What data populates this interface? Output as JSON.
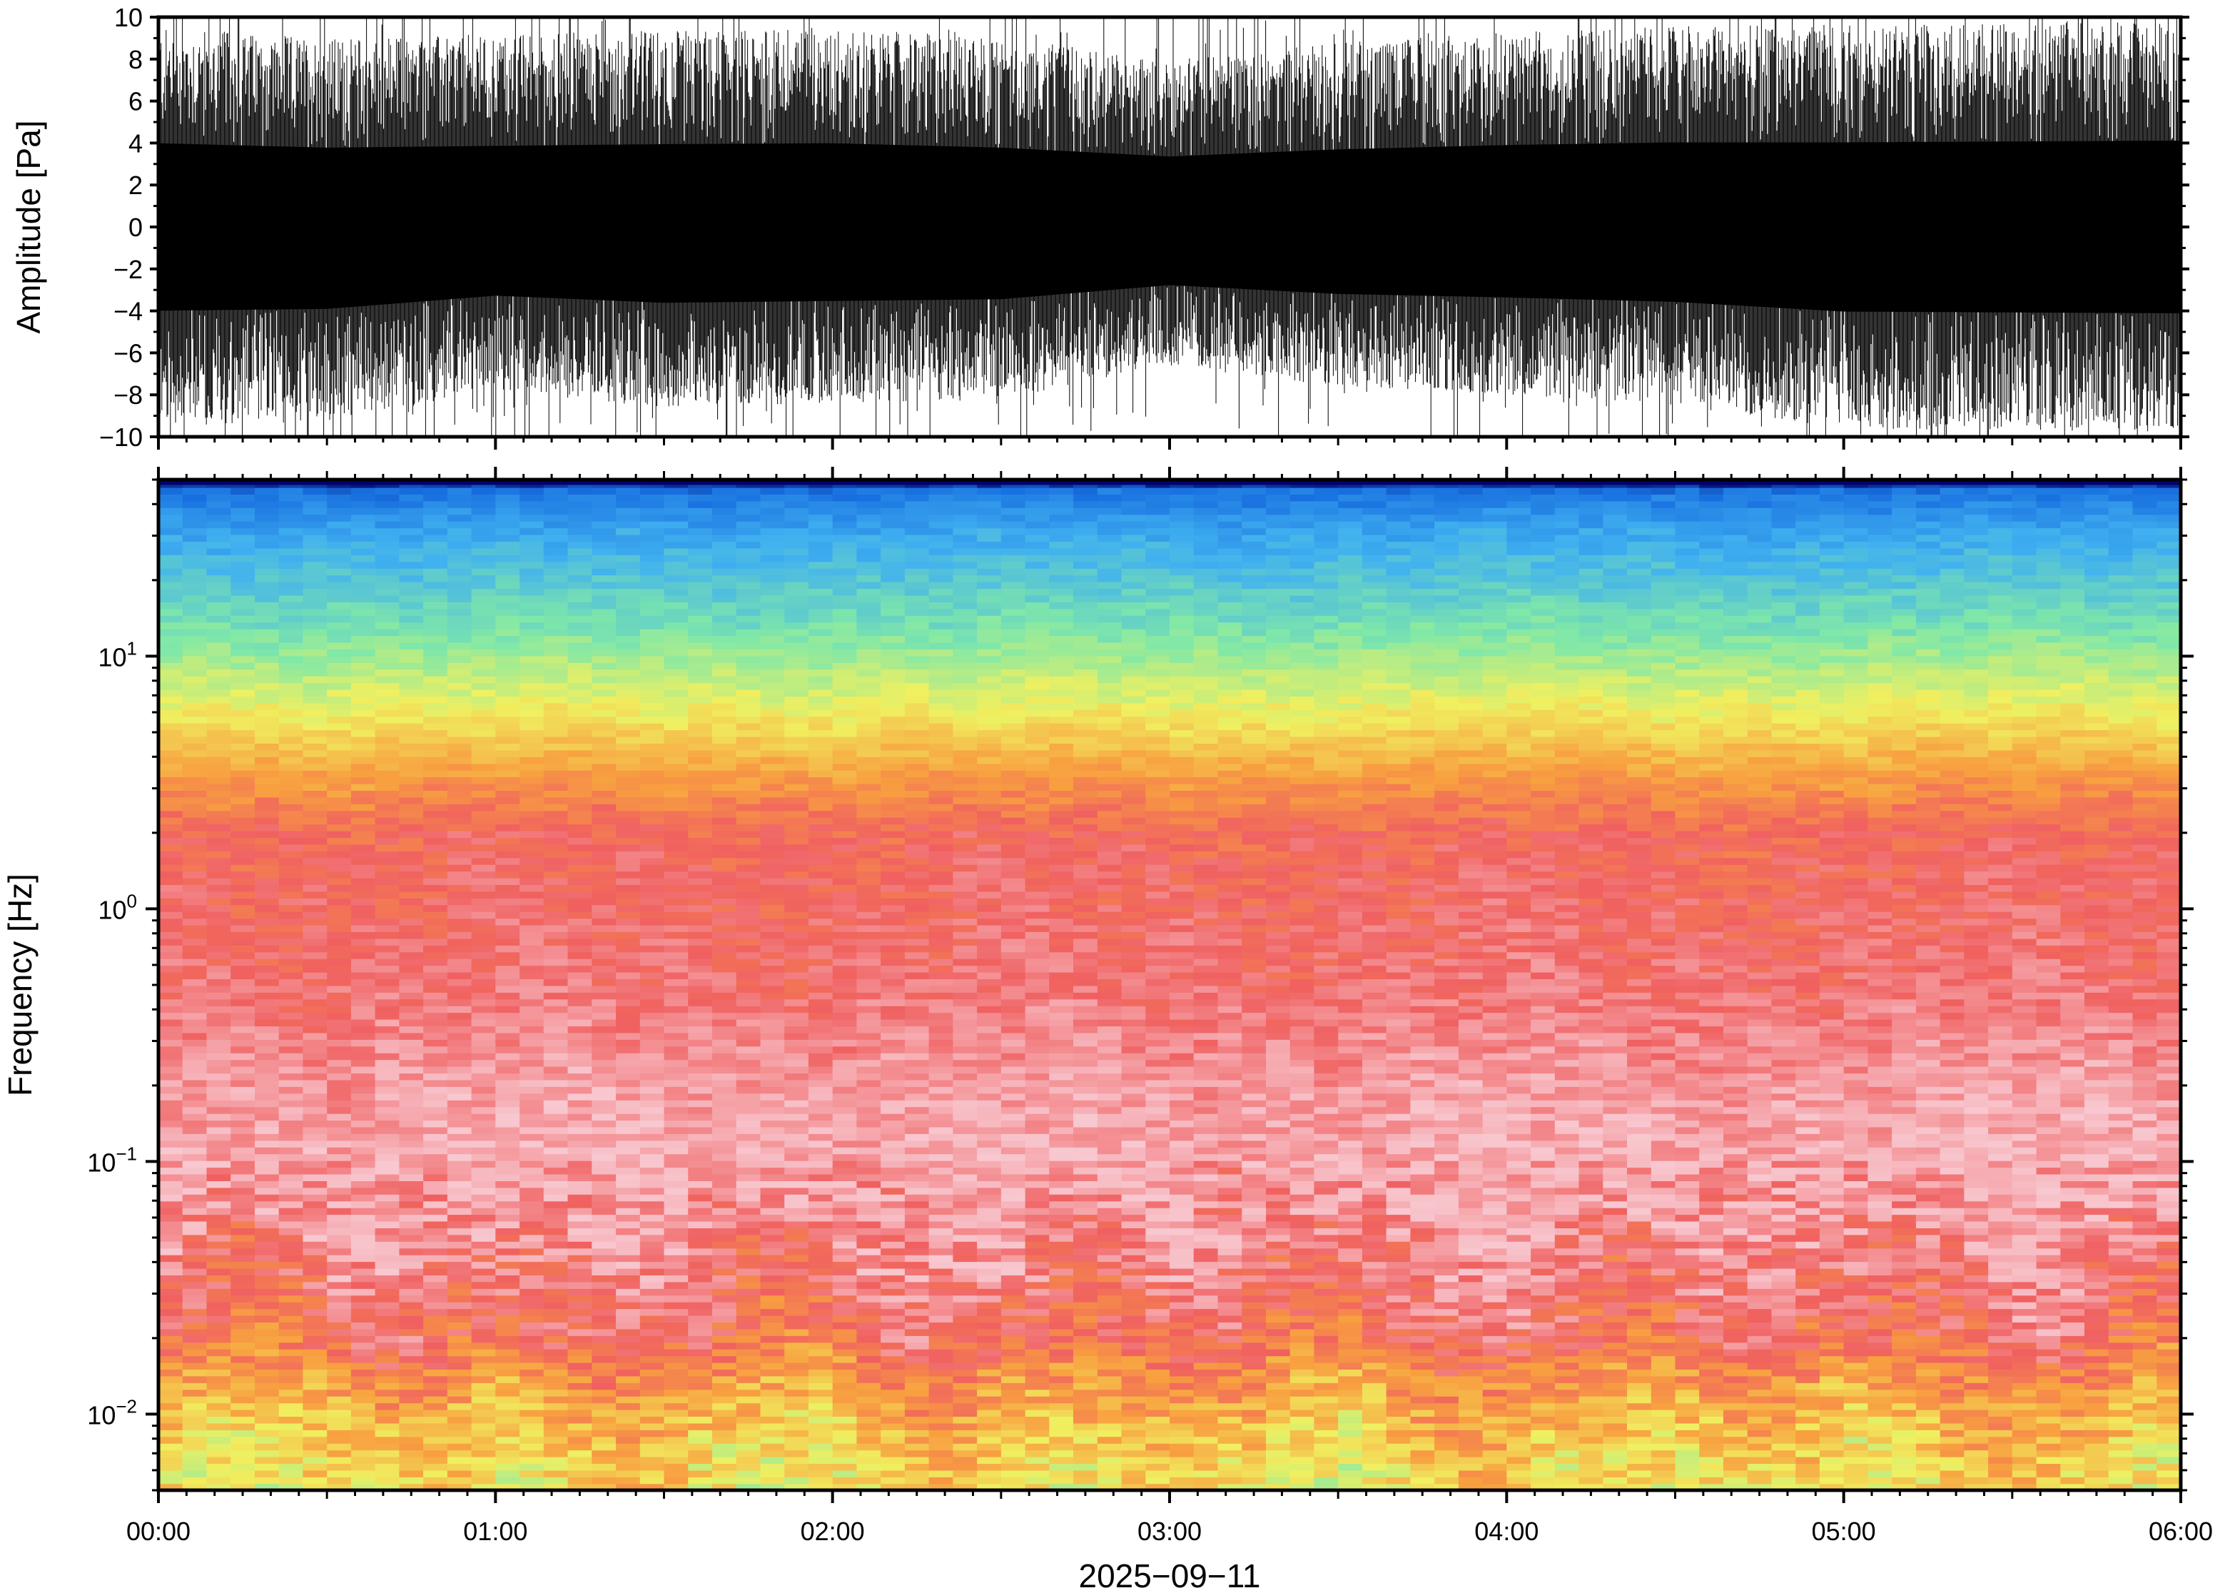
{
  "chart_data": [
    {
      "type": "line",
      "title": "",
      "ylabel": "Amplitude [Pa]",
      "xlabel": "",
      "ylim": [
        -10,
        10
      ],
      "yticks": [
        10,
        8,
        6,
        4,
        2,
        0,
        -2,
        -4,
        -6,
        -8,
        -10
      ],
      "ytick_labels": [
        "10",
        "8",
        "6",
        "4",
        "2",
        "0",
        "−2",
        "−4",
        "−6",
        "−8",
        "−10"
      ],
      "xlim": [
        "2025-09-11T00:00",
        "2025-09-11T06:00"
      ],
      "grid": false,
      "series": [
        {
          "color": "#000000",
          "envelope_times": [
            "00:00",
            "00:30",
            "01:00",
            "01:30",
            "02:00",
            "02:30",
            "03:00",
            "03:30",
            "04:00",
            "04:30",
            "05:00",
            "05:30",
            "06:00"
          ],
          "envelope_upper": [
            9.5,
            9.0,
            9.2,
            9.4,
            9.5,
            9.0,
            8.0,
            8.8,
            9.3,
            9.6,
            9.6,
            9.7,
            9.8
          ],
          "envelope_lower": [
            -9.5,
            -9.3,
            -7.8,
            -8.6,
            -8.4,
            -8.2,
            -6.6,
            -7.6,
            -8.0,
            -8.5,
            -9.6,
            -9.7,
            -9.8
          ]
        }
      ]
    },
    {
      "type": "heatmap",
      "title": "",
      "ylabel": "Frequency [Hz]",
      "xlabel": "2025−09−11",
      "yscale": "log",
      "ylim": [
        0.005,
        50
      ],
      "yticks": [
        0.01,
        0.1,
        1,
        10
      ],
      "ytick_labels": [
        {
          "base": "10",
          "exp": "−2"
        },
        {
          "base": "10",
          "exp": "−1"
        },
        {
          "base": "10",
          "exp": "0"
        },
        {
          "base": "10",
          "exp": "1"
        }
      ],
      "xlim": [
        "2025-09-11T00:00",
        "2025-09-11T06:00"
      ],
      "xticks": [
        "00:00",
        "01:00",
        "02:00",
        "03:00",
        "04:00",
        "05:00",
        "06:00"
      ],
      "grid": false,
      "colormap": [
        "#f0f0a0",
        "#a8f0b0",
        "#40d8d0",
        "#2a9cf0",
        "#1850d8",
        "#000080"
      ],
      "colormap_warm": [
        "#f8c8d0",
        "#f06060",
        "#f8a040",
        "#f0f060",
        "#80e8a8",
        "#40b0f0",
        "#1870e0",
        "#000060"
      ]
    }
  ]
}
